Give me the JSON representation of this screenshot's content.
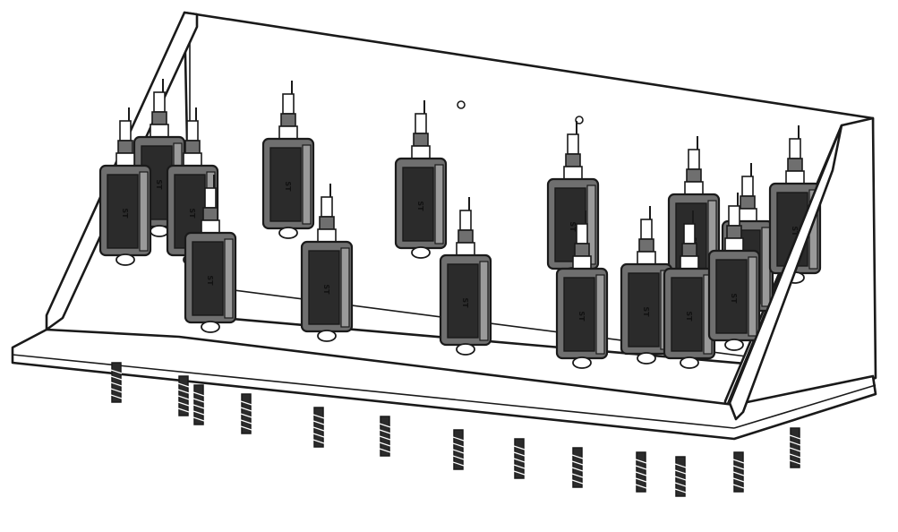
{
  "figure": {
    "module_label": "ST"
  },
  "colors": {
    "line": "#1a1a1a",
    "body_light": "#6f6f6f",
    "body_dark": "#2b2b2b",
    "panel": "#ffffff"
  },
  "counts": {
    "modules": 16,
    "screws": 13
  }
}
